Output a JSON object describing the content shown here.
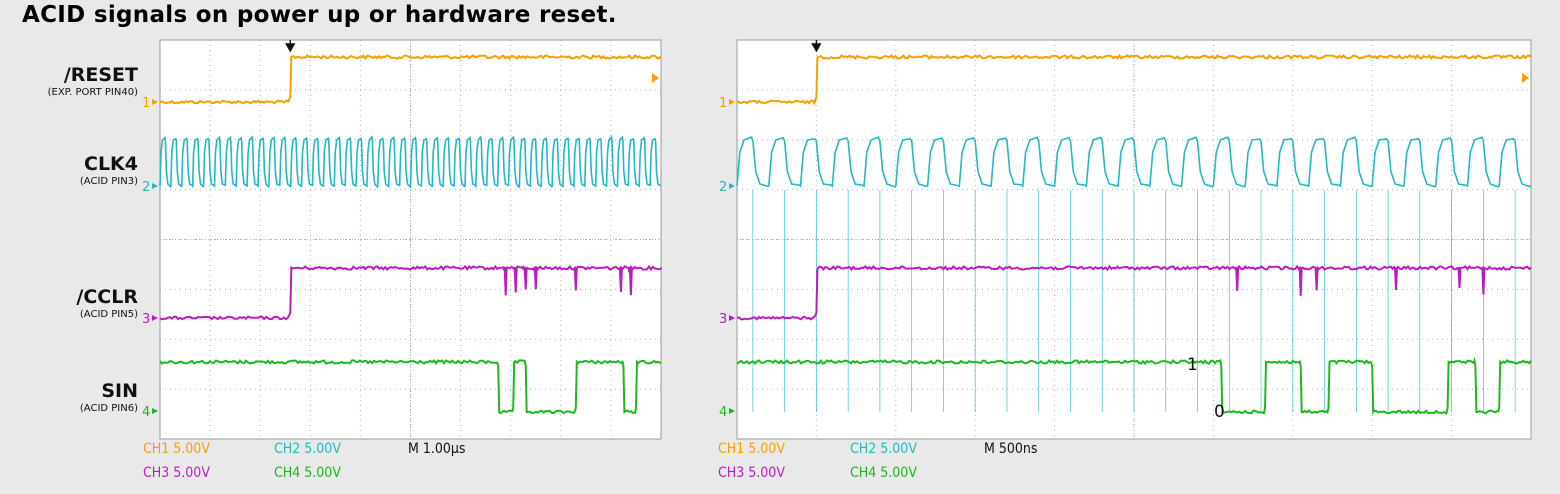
{
  "title": "ACID signals on power up or hardware reset.",
  "channel_labels": [
    {
      "name": "/RESET",
      "pin": "(EXP. PORT PIN40)"
    },
    {
      "name": "CLK4",
      "pin": "(ACID PIN3)"
    },
    {
      "name": "/CCLR",
      "pin": "(ACID PIN5)"
    },
    {
      "name": "SIN",
      "pin": "(ACID PIN6)"
    }
  ],
  "colors": {
    "ch1": "#f5a000",
    "ch2": "#22b8c4",
    "ch3": "#bb1cc0",
    "ch4": "#1eb81e",
    "grid_bg": "#ffffff",
    "grid_dots": "#b0b0b0"
  },
  "left_scope": {
    "readout": {
      "ch1": "CH1  5.00V",
      "ch2": "CH2  5.00V",
      "ch3": "CH3  5.00V",
      "ch4": "CH4  5.00V",
      "timebase": "M 1.00µs"
    }
  },
  "right_scope": {
    "readout": {
      "ch1": "CH1  5.00V",
      "ch2": "CH2  5.00V",
      "ch3": "CH3  5.00V",
      "ch4": "CH4  5.00V",
      "timebase": "M 500ns"
    },
    "annotations": [
      "1",
      "0"
    ]
  },
  "chart_data": [
    {
      "type": "line",
      "title": "",
      "timebase": "M 1.00µs",
      "x_unit": "divisions",
      "xlim": [
        0,
        10
      ],
      "series": [
        {
          "name": "/RESET",
          "kind": "step",
          "low_before_div": 2.6
        },
        {
          "name": "CLK4",
          "kind": "clock",
          "periods_over_screen": 46
        },
        {
          "name": "/CCLR",
          "kind": "step",
          "low_before_div": 2.6,
          "glitches_div": [
            6.9,
            7.1,
            7.3,
            7.5,
            8.3,
            9.2,
            9.4
          ]
        },
        {
          "name": "SIN",
          "kind": "pulses",
          "low_intervals_div": [
            [
              6.75,
              7.05
            ],
            [
              7.3,
              8.3
            ],
            [
              9.25,
              9.5
            ]
          ]
        }
      ]
    },
    {
      "type": "line",
      "title": "",
      "timebase": "M 500ns",
      "x_unit": "divisions",
      "xlim": [
        0,
        10
      ],
      "series": [
        {
          "name": "/RESET",
          "kind": "step",
          "low_before_div": 1.0
        },
        {
          "name": "CLK4",
          "kind": "clock",
          "periods_over_screen": 25
        },
        {
          "name": "/CCLR",
          "kind": "step",
          "low_before_div": 1.0,
          "glitches_div": [
            6.3,
            7.1,
            7.3,
            8.3,
            9.1,
            9.4
          ]
        },
        {
          "name": "SIN",
          "kind": "pulses",
          "low_intervals_div": [
            [
              6.1,
              6.65
            ],
            [
              7.1,
              7.45
            ],
            [
              8.0,
              8.95
            ],
            [
              9.3,
              9.6
            ]
          ]
        }
      ]
    }
  ]
}
